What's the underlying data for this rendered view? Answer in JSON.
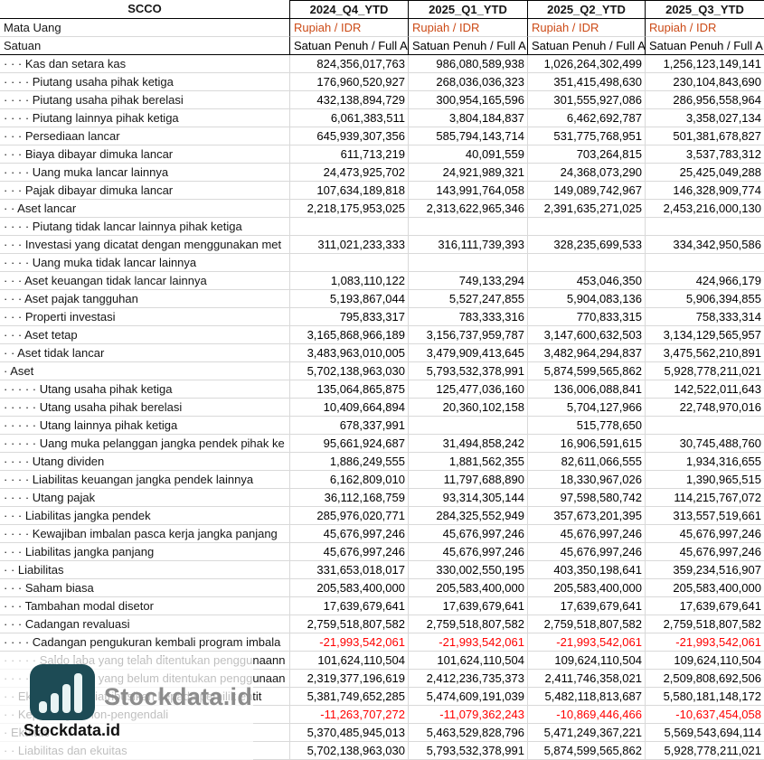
{
  "colors": {
    "grid_line": "#d9d9d9",
    "border_dark": "#000000",
    "negative": "#ff0000",
    "currency_text": "#cc4a16",
    "wm_bg": "#1d4b55",
    "wm_bar": "#e9f4f4",
    "wm_text_large": "#8c8c8c",
    "wm_text_small": "#111111"
  },
  "header": {
    "ticker": "SCCO",
    "columns": [
      "2024_Q4_YTD",
      "2025_Q1_YTD",
      "2025_Q2_YTD",
      "2025_Q3_YTD"
    ]
  },
  "meta_rows": [
    {
      "name": "currency",
      "label": "Mata Uang",
      "values": [
        "Rupiah / IDR",
        "Rupiah / IDR",
        "Rupiah / IDR",
        "Rupiah / IDR"
      ]
    },
    {
      "name": "unit",
      "label": "Satuan",
      "values": [
        "Satuan Penuh / Full A",
        "Satuan Penuh / Full A",
        "Satuan Penuh / Full A",
        "Satuan Penuh / Full A"
      ]
    }
  ],
  "rows": [
    {
      "label": "· · · Kas dan setara kas",
      "values": [
        "824,356,017,763",
        "986,080,589,938",
        "1,026,264,302,499",
        "1,256,123,149,141"
      ]
    },
    {
      "label": "· · · · Piutang usaha pihak ketiga",
      "values": [
        "176,960,520,927",
        "268,036,036,323",
        "351,415,498,630",
        "230,104,843,690"
      ]
    },
    {
      "label": "· · · · Piutang usaha pihak berelasi",
      "values": [
        "432,138,894,729",
        "300,954,165,596",
        "301,555,927,086",
        "286,956,558,964"
      ]
    },
    {
      "label": "· · · · Piutang lainnya pihak ketiga",
      "values": [
        "6,061,383,511",
        "3,804,184,837",
        "6,462,692,787",
        "3,358,027,134"
      ]
    },
    {
      "label": "· · · Persediaan lancar",
      "values": [
        "645,939,307,356",
        "585,794,143,714",
        "531,775,768,951",
        "501,381,678,827"
      ]
    },
    {
      "label": "· · · Biaya dibayar dimuka lancar",
      "values": [
        "611,713,219",
        "40,091,559",
        "703,264,815",
        "3,537,783,312"
      ]
    },
    {
      "label": "· · · · Uang muka lancar lainnya",
      "values": [
        "24,473,925,702",
        "24,921,989,321",
        "24,368,073,290",
        "25,425,049,288"
      ]
    },
    {
      "label": "· · · Pajak dibayar dimuka lancar",
      "values": [
        "107,634,189,818",
        "143,991,764,058",
        "149,089,742,967",
        "146,328,909,774"
      ]
    },
    {
      "label": "· · Aset lancar",
      "values": [
        "2,218,175,953,025",
        "2,313,622,965,346",
        "2,391,635,271,025",
        "2,453,216,000,130"
      ]
    },
    {
      "label": "· · · · Piutang tidak lancar lainnya pihak ketiga",
      "values": [
        "",
        "",
        "",
        ""
      ]
    },
    {
      "label": "· · · Investasi yang dicatat dengan menggunakan met",
      "values": [
        "311,021,233,333",
        "316,111,739,393",
        "328,235,699,533",
        "334,342,950,586"
      ]
    },
    {
      "label": "· · · · Uang muka tidak lancar lainnya",
      "values": [
        "",
        "",
        "",
        ""
      ]
    },
    {
      "label": "· · · Aset keuangan tidak lancar lainnya",
      "values": [
        "1,083,110,122",
        "749,133,294",
        "453,046,350",
        "424,966,179"
      ]
    },
    {
      "label": "· · · Aset pajak tangguhan",
      "values": [
        "5,193,867,044",
        "5,527,247,855",
        "5,904,083,136",
        "5,906,394,855"
      ]
    },
    {
      "label": "· · · Properti investasi",
      "values": [
        "795,833,317",
        "783,333,316",
        "770,833,315",
        "758,333,314"
      ]
    },
    {
      "label": "· · · Aset tetap",
      "values": [
        "3,165,868,966,189",
        "3,156,737,959,787",
        "3,147,600,632,503",
        "3,134,129,565,957"
      ]
    },
    {
      "label": "· · Aset tidak lancar",
      "values": [
        "3,483,963,010,005",
        "3,479,909,413,645",
        "3,482,964,294,837",
        "3,475,562,210,891"
      ]
    },
    {
      "label": "· Aset",
      "values": [
        "5,702,138,963,030",
        "5,793,532,378,991",
        "5,874,599,565,862",
        "5,928,778,211,021"
      ]
    },
    {
      "label": "· · · · · Utang usaha pihak ketiga",
      "values": [
        "135,064,865,875",
        "125,477,036,160",
        "136,006,088,841",
        "142,522,011,643"
      ]
    },
    {
      "label": "· · · · · Utang usaha pihak berelasi",
      "values": [
        "10,409,664,894",
        "20,360,102,158",
        "5,704,127,966",
        "22,748,970,016"
      ]
    },
    {
      "label": "· · · · · Utang lainnya pihak ketiga",
      "values": [
        "678,337,991",
        "",
        "515,778,650",
        ""
      ]
    },
    {
      "label": "· · · · · Uang muka pelanggan jangka pendek pihak ke",
      "values": [
        "95,661,924,687",
        "31,494,858,242",
        "16,906,591,615",
        "30,745,488,760"
      ]
    },
    {
      "label": "· · · · Utang dividen",
      "values": [
        "1,886,249,555",
        "1,881,562,355",
        "82,611,066,555",
        "1,934,316,655"
      ]
    },
    {
      "label": "· · · · Liabilitas keuangan jangka pendek lainnya",
      "values": [
        "6,162,809,010",
        "11,797,688,890",
        "18,330,967,026",
        "1,390,965,515"
      ]
    },
    {
      "label": "· · · · Utang pajak",
      "values": [
        "36,112,168,759",
        "93,314,305,144",
        "97,598,580,742",
        "114,215,767,072"
      ]
    },
    {
      "label": "· · · Liabilitas jangka pendek",
      "values": [
        "285,976,020,771",
        "284,325,552,949",
        "357,673,201,395",
        "313,557,519,661"
      ]
    },
    {
      "label": "· · · · Kewajiban imbalan pasca kerja jangka panjang",
      "values": [
        "45,676,997,246",
        "45,676,997,246",
        "45,676,997,246",
        "45,676,997,246"
      ]
    },
    {
      "label": "· · · Liabilitas jangka panjang",
      "values": [
        "45,676,997,246",
        "45,676,997,246",
        "45,676,997,246",
        "45,676,997,246"
      ]
    },
    {
      "label": "· · Liabilitas",
      "values": [
        "331,653,018,017",
        "330,002,550,195",
        "403,350,198,641",
        "359,234,516,907"
      ]
    },
    {
      "label": "· · · Saham biasa",
      "values": [
        "205,583,400,000",
        "205,583,400,000",
        "205,583,400,000",
        "205,583,400,000"
      ]
    },
    {
      "label": "· · · Tambahan modal disetor",
      "values": [
        "17,639,679,641",
        "17,639,679,641",
        "17,639,679,641",
        "17,639,679,641"
      ]
    },
    {
      "label": "· · · Cadangan revaluasi",
      "values": [
        "2,759,518,807,582",
        "2,759,518,807,582",
        "2,759,518,807,582",
        "2,759,518,807,582"
      ]
    },
    {
      "label": "· · · · Cadangan pengukuran kembali program imbala",
      "values": [
        "-21,993,542,061",
        "-21,993,542,061",
        "-21,993,542,061",
        "-21,993,542,061"
      ]
    },
    {
      "label": "· · · · · Saldo laba yang telah ditentukan penggunaann",
      "values": [
        "101,624,110,504",
        "101,624,110,504",
        "109,624,110,504",
        "109,624,110,504"
      ]
    },
    {
      "label": "· · · · · Saldo laba yang belum ditentukan penggunaan",
      "values": [
        "2,319,377,196,619",
        "2,412,236,735,373",
        "2,411,746,358,021",
        "2,509,808,692,506"
      ]
    },
    {
      "label": "· · Ekuitas yang diatribusikan kepada pemilik entit",
      "values": [
        "5,381,749,652,285",
        "5,474,609,191,039",
        "5,482,118,813,687",
        "5,580,181,148,172"
      ]
    },
    {
      "label": "· · Kepentingan non-pengendali",
      "values": [
        "-11,263,707,272",
        "-11,079,362,243",
        "-10,869,446,466",
        "-10,637,454,058"
      ]
    },
    {
      "label": "· Ekuitas",
      "values": [
        "5,370,485,945,013",
        "5,463,529,828,796",
        "5,471,249,367,221",
        "5,569,543,694,114"
      ]
    },
    {
      "label": "· · Liabilitas dan ekuitas",
      "values": [
        "5,702,138,963,030",
        "5,793,532,378,991",
        "5,874,599,565,862",
        "5,928,778,211,021"
      ]
    }
  ],
  "watermark": {
    "brand_large": "Stockdata.id",
    "brand_small": "Stockdata.id"
  }
}
